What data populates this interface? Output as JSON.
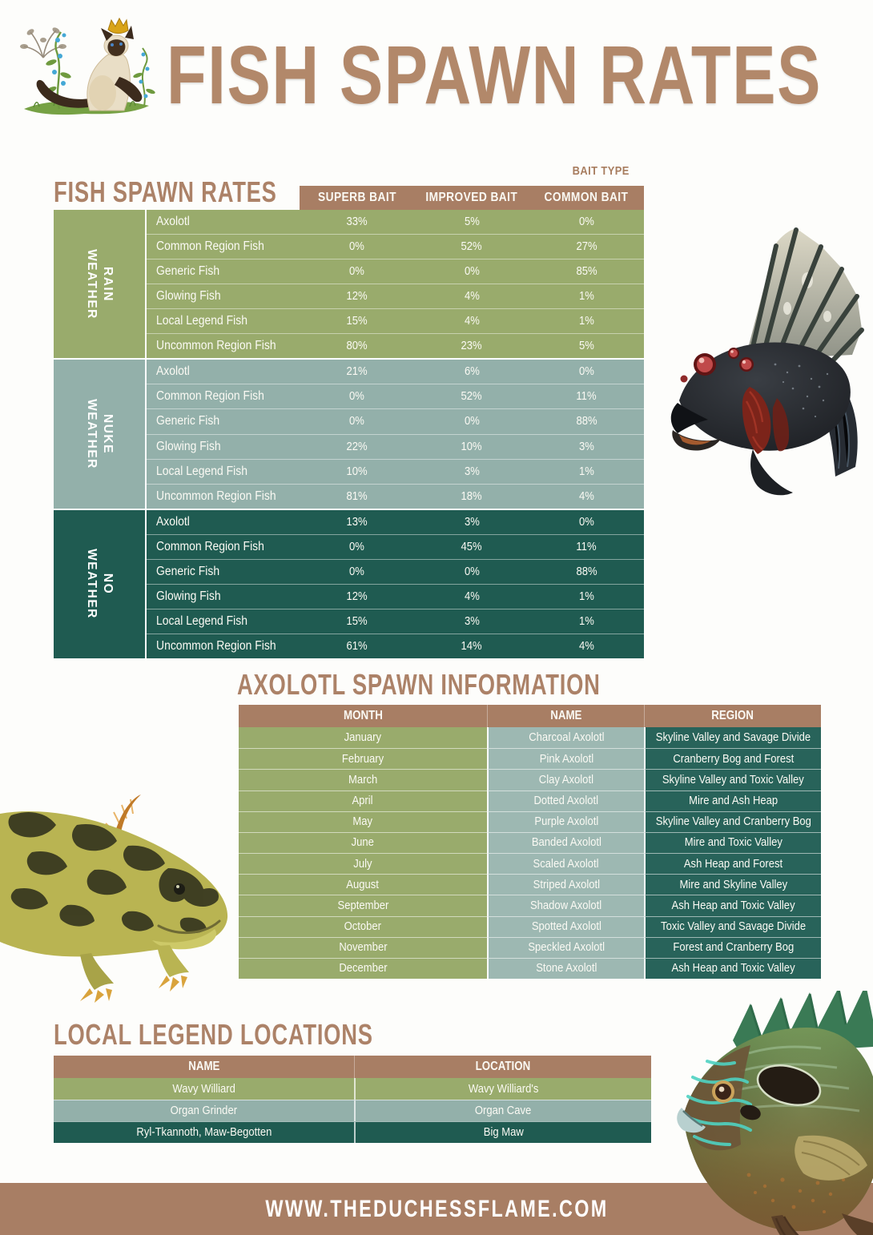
{
  "page": {
    "title": "FISH SPAWN RATES",
    "footer_url": "WWW.THEDUCHESSFLAME.COM"
  },
  "colors": {
    "brown_bar": "#a87e64",
    "title_brown": "#b2886a",
    "green": "#99ab6c",
    "slate": "#93b0aa",
    "teal": "#1f5b51"
  },
  "images": {
    "logo": "siamese-cat-with-crown-and-blue-flowers",
    "fish_top_right": "dark-spiny-fish-with-red-eyes",
    "axolotl_left": "yellow-black-striped-axolotl",
    "fish_bottom_right": "green-sunfish"
  },
  "spawn_rates": {
    "section_title": "FISH SPAWN RATES",
    "bait_type_label": "BAIT TYPE",
    "columns": [
      "SUPERB BAIT",
      "IMPROVED BAIT",
      "COMMON BAIT"
    ],
    "groups": [
      {
        "weather_lines": [
          "RAIN",
          "WEATHER"
        ],
        "css": "bg-green",
        "rows": [
          {
            "fish": "Axolotl",
            "values": [
              "33%",
              "5%",
              "0%"
            ]
          },
          {
            "fish": "Common Region Fish",
            "values": [
              "0%",
              "52%",
              "27%"
            ]
          },
          {
            "fish": "Generic Fish",
            "values": [
              "0%",
              "0%",
              "85%"
            ]
          },
          {
            "fish": "Glowing Fish",
            "values": [
              "12%",
              "4%",
              "1%"
            ]
          },
          {
            "fish": "Local Legend Fish",
            "values": [
              "15%",
              "4%",
              "1%"
            ]
          },
          {
            "fish": "Uncommon Region Fish",
            "values": [
              "80%",
              "23%",
              "5%"
            ]
          }
        ]
      },
      {
        "weather_lines": [
          "NUKE",
          "WEATHER"
        ],
        "css": "bg-slate",
        "rows": [
          {
            "fish": "Axolotl",
            "values": [
              "21%",
              "6%",
              "0%"
            ]
          },
          {
            "fish": "Common Region Fish",
            "values": [
              "0%",
              "52%",
              "11%"
            ]
          },
          {
            "fish": "Generic Fish",
            "values": [
              "0%",
              "0%",
              "88%"
            ]
          },
          {
            "fish": "Glowing Fish",
            "values": [
              "22%",
              "10%",
              "3%"
            ]
          },
          {
            "fish": "Local Legend Fish",
            "values": [
              "10%",
              "3%",
              "1%"
            ]
          },
          {
            "fish": "Uncommon Region Fish",
            "values": [
              "81%",
              "18%",
              "4%"
            ]
          }
        ]
      },
      {
        "weather_lines": [
          "NO",
          "WEATHER"
        ],
        "css": "bg-teal",
        "rows": [
          {
            "fish": "Axolotl",
            "values": [
              "13%",
              "3%",
              "0%"
            ]
          },
          {
            "fish": "Common Region Fish",
            "values": [
              "0%",
              "45%",
              "11%"
            ]
          },
          {
            "fish": "Generic Fish",
            "values": [
              "0%",
              "0%",
              "88%"
            ]
          },
          {
            "fish": "Glowing Fish",
            "values": [
              "12%",
              "4%",
              "1%"
            ]
          },
          {
            "fish": "Local Legend Fish",
            "values": [
              "15%",
              "3%",
              "1%"
            ]
          },
          {
            "fish": "Uncommon Region Fish",
            "values": [
              "61%",
              "14%",
              "4%"
            ]
          }
        ]
      }
    ]
  },
  "axolotl_info": {
    "section_title": "AXOLOTL SPAWN INFORMATION",
    "columns": [
      "MONTH",
      "NAME",
      "REGION"
    ],
    "rows": [
      [
        "January",
        "Charcoal Axolotl",
        "Skyline Valley and Savage Divide"
      ],
      [
        "February",
        "Pink Axolotl",
        "Cranberry Bog and Forest"
      ],
      [
        "March",
        "Clay Axolotl",
        "Skyline Valley and Toxic Valley"
      ],
      [
        "April",
        "Dotted Axolotl",
        "Mire and Ash Heap"
      ],
      [
        "May",
        "Purple Axolotl",
        "Skyline Valley and Cranberry Bog"
      ],
      [
        "June",
        "Banded Axolotl",
        "Mire and Toxic Valley"
      ],
      [
        "July",
        "Scaled Axolotl",
        "Ash Heap and Forest"
      ],
      [
        "August",
        "Striped Axolotl",
        "Mire and Skyline Valley"
      ],
      [
        "September",
        "Shadow Axolotl",
        "Ash Heap and Toxic Valley"
      ],
      [
        "October",
        "Spotted Axolotl",
        "Toxic Valley and Savage Divide"
      ],
      [
        "November",
        "Speckled Axolotl",
        "Forest and Cranberry Bog"
      ],
      [
        "December",
        "Stone Axolotl",
        "Ash Heap and Toxic Valley"
      ]
    ]
  },
  "local_legends": {
    "section_title": "LOCAL LEGEND LOCATIONS",
    "columns": [
      "NAME",
      "LOCATION"
    ],
    "rows": [
      [
        "Wavy Williard",
        "Wavy Williard's"
      ],
      [
        "Organ Grinder",
        "Organ Cave"
      ],
      [
        "Ryl-Tkannoth, Maw-Begotten",
        "Big Maw"
      ]
    ]
  }
}
